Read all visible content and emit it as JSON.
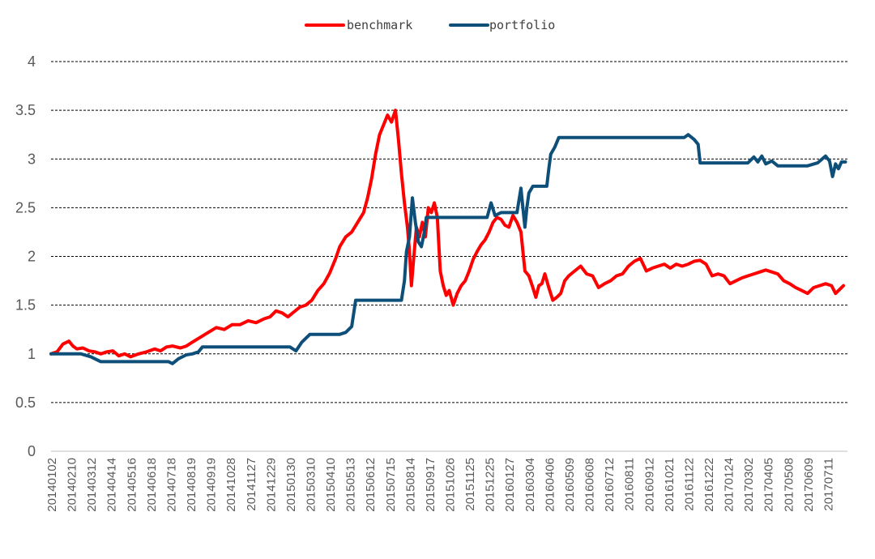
{
  "chart_data": {
    "type": "line",
    "title": "",
    "xlabel": "",
    "ylabel": "",
    "ylim": [
      0,
      4
    ],
    "y_ticks": [
      "0",
      "0.5",
      "1",
      "1.5",
      "2",
      "2.5",
      "3",
      "3.5",
      "4"
    ],
    "grid": true,
    "legend_position": "top-center",
    "categories": [
      "20140102",
      "20140210",
      "20140312",
      "20140414",
      "20140516",
      "20140618",
      "20140718",
      "20140819",
      "20140919",
      "20141028",
      "20141127",
      "20141229",
      "20150130",
      "20150310",
      "20150410",
      "20150513",
      "20150612",
      "20150715",
      "20150814",
      "20150917",
      "20151026",
      "20151125",
      "20151225",
      "20160127",
      "20160304",
      "20160406",
      "20160509",
      "20160608",
      "20160712",
      "20160811",
      "20160912",
      "20161021",
      "20161122",
      "20161222",
      "20170124",
      "20170302",
      "20170405",
      "20170508",
      "20170609",
      "20170711"
    ],
    "series": [
      {
        "name": "benchmark",
        "color": "#ff0000",
        "values": [
          [
            0,
            1.0
          ],
          [
            0.3,
            1.02
          ],
          [
            0.6,
            1.1
          ],
          [
            0.9,
            1.13
          ],
          [
            1.1,
            1.08
          ],
          [
            1.3,
            1.05
          ],
          [
            1.6,
            1.06
          ],
          [
            1.9,
            1.03
          ],
          [
            2.2,
            1.02
          ],
          [
            2.5,
            1.0
          ],
          [
            2.8,
            1.02
          ],
          [
            3.1,
            1.03
          ],
          [
            3.4,
            0.98
          ],
          [
            3.7,
            1.0
          ],
          [
            4.0,
            0.97
          ],
          [
            4.4,
            1.0
          ],
          [
            4.8,
            1.02
          ],
          [
            5.2,
            1.05
          ],
          [
            5.5,
            1.03
          ],
          [
            5.8,
            1.07
          ],
          [
            6.1,
            1.08
          ],
          [
            6.5,
            1.06
          ],
          [
            6.8,
            1.08
          ],
          [
            7.1,
            1.12
          ],
          [
            7.5,
            1.17
          ],
          [
            7.9,
            1.22
          ],
          [
            8.3,
            1.27
          ],
          [
            8.7,
            1.25
          ],
          [
            9.1,
            1.3
          ],
          [
            9.5,
            1.3
          ],
          [
            9.9,
            1.34
          ],
          [
            10.3,
            1.32
          ],
          [
            10.7,
            1.36
          ],
          [
            11.0,
            1.38
          ],
          [
            11.3,
            1.44
          ],
          [
            11.6,
            1.42
          ],
          [
            11.9,
            1.38
          ],
          [
            12.2,
            1.43
          ],
          [
            12.5,
            1.48
          ],
          [
            12.8,
            1.5
          ],
          [
            13.1,
            1.55
          ],
          [
            13.4,
            1.65
          ],
          [
            13.7,
            1.72
          ],
          [
            14.0,
            1.83
          ],
          [
            14.3,
            1.98
          ],
          [
            14.5,
            2.1
          ],
          [
            14.8,
            2.2
          ],
          [
            15.1,
            2.25
          ],
          [
            15.4,
            2.35
          ],
          [
            15.7,
            2.45
          ],
          [
            15.9,
            2.6
          ],
          [
            16.1,
            2.8
          ],
          [
            16.3,
            3.05
          ],
          [
            16.5,
            3.25
          ],
          [
            16.7,
            3.35
          ],
          [
            16.9,
            3.45
          ],
          [
            17.1,
            3.38
          ],
          [
            17.3,
            3.5
          ],
          [
            17.45,
            3.2
          ],
          [
            17.6,
            2.85
          ],
          [
            17.75,
            2.55
          ],
          [
            17.9,
            2.3
          ],
          [
            18.0,
            2.05
          ],
          [
            18.1,
            1.7
          ],
          [
            18.2,
            1.95
          ],
          [
            18.35,
            2.3
          ],
          [
            18.5,
            2.2
          ],
          [
            18.65,
            2.35
          ],
          [
            18.8,
            2.2
          ],
          [
            18.95,
            2.5
          ],
          [
            19.1,
            2.45
          ],
          [
            19.25,
            2.55
          ],
          [
            19.4,
            2.4
          ],
          [
            19.55,
            1.85
          ],
          [
            19.7,
            1.7
          ],
          [
            19.85,
            1.6
          ],
          [
            20.0,
            1.65
          ],
          [
            20.2,
            1.5
          ],
          [
            20.4,
            1.62
          ],
          [
            20.6,
            1.7
          ],
          [
            20.8,
            1.75
          ],
          [
            21.0,
            1.85
          ],
          [
            21.2,
            1.97
          ],
          [
            21.4,
            2.05
          ],
          [
            21.6,
            2.12
          ],
          [
            21.8,
            2.17
          ],
          [
            22.0,
            2.25
          ],
          [
            22.2,
            2.35
          ],
          [
            22.4,
            2.4
          ],
          [
            22.6,
            2.38
          ],
          [
            22.8,
            2.32
          ],
          [
            23.0,
            2.3
          ],
          [
            23.2,
            2.42
          ],
          [
            23.4,
            2.35
          ],
          [
            23.6,
            2.25
          ],
          [
            23.8,
            1.85
          ],
          [
            24.0,
            1.8
          ],
          [
            24.2,
            1.68
          ],
          [
            24.35,
            1.58
          ],
          [
            24.5,
            1.7
          ],
          [
            24.65,
            1.72
          ],
          [
            24.8,
            1.82
          ],
          [
            25.0,
            1.68
          ],
          [
            25.2,
            1.55
          ],
          [
            25.4,
            1.58
          ],
          [
            25.6,
            1.62
          ],
          [
            25.8,
            1.75
          ],
          [
            26.0,
            1.8
          ],
          [
            26.3,
            1.85
          ],
          [
            26.6,
            1.9
          ],
          [
            26.9,
            1.82
          ],
          [
            27.2,
            1.8
          ],
          [
            27.5,
            1.68
          ],
          [
            27.8,
            1.72
          ],
          [
            28.1,
            1.75
          ],
          [
            28.4,
            1.8
          ],
          [
            28.7,
            1.82
          ],
          [
            29.0,
            1.9
          ],
          [
            29.3,
            1.95
          ],
          [
            29.6,
            1.98
          ],
          [
            29.9,
            1.85
          ],
          [
            30.2,
            1.88
          ],
          [
            30.5,
            1.9
          ],
          [
            30.8,
            1.92
          ],
          [
            31.1,
            1.88
          ],
          [
            31.4,
            1.92
          ],
          [
            31.7,
            1.9
          ],
          [
            32.0,
            1.92
          ],
          [
            32.3,
            1.95
          ],
          [
            32.6,
            1.96
          ],
          [
            32.9,
            1.92
          ],
          [
            33.2,
            1.8
          ],
          [
            33.5,
            1.82
          ],
          [
            33.8,
            1.8
          ],
          [
            34.1,
            1.72
          ],
          [
            34.4,
            1.75
          ],
          [
            34.7,
            1.78
          ],
          [
            35.0,
            1.8
          ],
          [
            35.3,
            1.82
          ],
          [
            35.6,
            1.84
          ],
          [
            35.9,
            1.86
          ],
          [
            36.2,
            1.84
          ],
          [
            36.5,
            1.82
          ],
          [
            36.8,
            1.75
          ],
          [
            37.1,
            1.72
          ],
          [
            37.4,
            1.68
          ],
          [
            37.7,
            1.65
          ],
          [
            38.0,
            1.62
          ],
          [
            38.3,
            1.68
          ],
          [
            38.6,
            1.7
          ],
          [
            38.9,
            1.72
          ],
          [
            39.2,
            1.7
          ],
          [
            39.4,
            1.62
          ],
          [
            39.6,
            1.66
          ],
          [
            39.8,
            1.7
          ]
        ]
      },
      {
        "name": "portfolio",
        "color": "#0e4f7a",
        "values": [
          [
            0,
            1.0
          ],
          [
            1.5,
            1.0
          ],
          [
            2.0,
            0.97
          ],
          [
            2.5,
            0.92
          ],
          [
            3.5,
            0.92
          ],
          [
            4.5,
            0.92
          ],
          [
            5.5,
            0.92
          ],
          [
            5.9,
            0.92
          ],
          [
            6.1,
            0.9
          ],
          [
            6.4,
            0.95
          ],
          [
            6.8,
            0.99
          ],
          [
            7.1,
            1.0
          ],
          [
            7.4,
            1.02
          ],
          [
            7.6,
            1.07
          ],
          [
            8.5,
            1.07
          ],
          [
            9.5,
            1.07
          ],
          [
            10.5,
            1.07
          ],
          [
            11.5,
            1.07
          ],
          [
            12.0,
            1.07
          ],
          [
            12.3,
            1.03
          ],
          [
            12.6,
            1.12
          ],
          [
            13.0,
            1.2
          ],
          [
            13.5,
            1.2
          ],
          [
            14.0,
            1.2
          ],
          [
            14.5,
            1.2
          ],
          [
            14.8,
            1.22
          ],
          [
            15.1,
            1.28
          ],
          [
            15.3,
            1.55
          ],
          [
            15.8,
            1.55
          ],
          [
            16.3,
            1.55
          ],
          [
            16.8,
            1.55
          ],
          [
            17.3,
            1.55
          ],
          [
            17.6,
            1.55
          ],
          [
            17.75,
            1.75
          ],
          [
            17.85,
            2.05
          ],
          [
            18.0,
            2.2
          ],
          [
            18.15,
            2.6
          ],
          [
            18.3,
            2.35
          ],
          [
            18.45,
            2.15
          ],
          [
            18.6,
            2.1
          ],
          [
            18.75,
            2.25
          ],
          [
            18.85,
            2.4
          ],
          [
            19.5,
            2.4
          ],
          [
            20.5,
            2.4
          ],
          [
            21.5,
            2.4
          ],
          [
            21.9,
            2.4
          ],
          [
            22.1,
            2.55
          ],
          [
            22.3,
            2.42
          ],
          [
            22.6,
            2.45
          ],
          [
            23.0,
            2.45
          ],
          [
            23.4,
            2.45
          ],
          [
            23.6,
            2.7
          ],
          [
            23.7,
            2.5
          ],
          [
            23.8,
            2.3
          ],
          [
            23.9,
            2.5
          ],
          [
            24.0,
            2.65
          ],
          [
            24.2,
            2.72
          ],
          [
            24.5,
            2.72
          ],
          [
            24.9,
            2.72
          ],
          [
            25.0,
            2.9
          ],
          [
            25.1,
            3.05
          ],
          [
            25.3,
            3.12
          ],
          [
            25.5,
            3.22
          ],
          [
            26.5,
            3.22
          ],
          [
            27.5,
            3.22
          ],
          [
            28.5,
            3.22
          ],
          [
            29.5,
            3.22
          ],
          [
            30.5,
            3.22
          ],
          [
            31.5,
            3.22
          ],
          [
            31.8,
            3.22
          ],
          [
            32.0,
            3.25
          ],
          [
            32.3,
            3.2
          ],
          [
            32.5,
            3.15
          ],
          [
            32.6,
            2.96
          ],
          [
            33.0,
            2.96
          ],
          [
            34.0,
            2.96
          ],
          [
            35.0,
            2.96
          ],
          [
            35.3,
            3.02
          ],
          [
            35.5,
            2.97
          ],
          [
            35.7,
            3.03
          ],
          [
            35.9,
            2.95
          ],
          [
            36.2,
            2.98
          ],
          [
            36.5,
            2.93
          ],
          [
            37.0,
            2.93
          ],
          [
            37.5,
            2.93
          ],
          [
            38.0,
            2.93
          ],
          [
            38.5,
            2.96
          ],
          [
            38.9,
            3.03
          ],
          [
            39.1,
            2.98
          ],
          [
            39.25,
            2.82
          ],
          [
            39.4,
            2.95
          ],
          [
            39.55,
            2.9
          ],
          [
            39.7,
            2.97
          ],
          [
            39.9,
            2.97
          ]
        ]
      }
    ]
  }
}
